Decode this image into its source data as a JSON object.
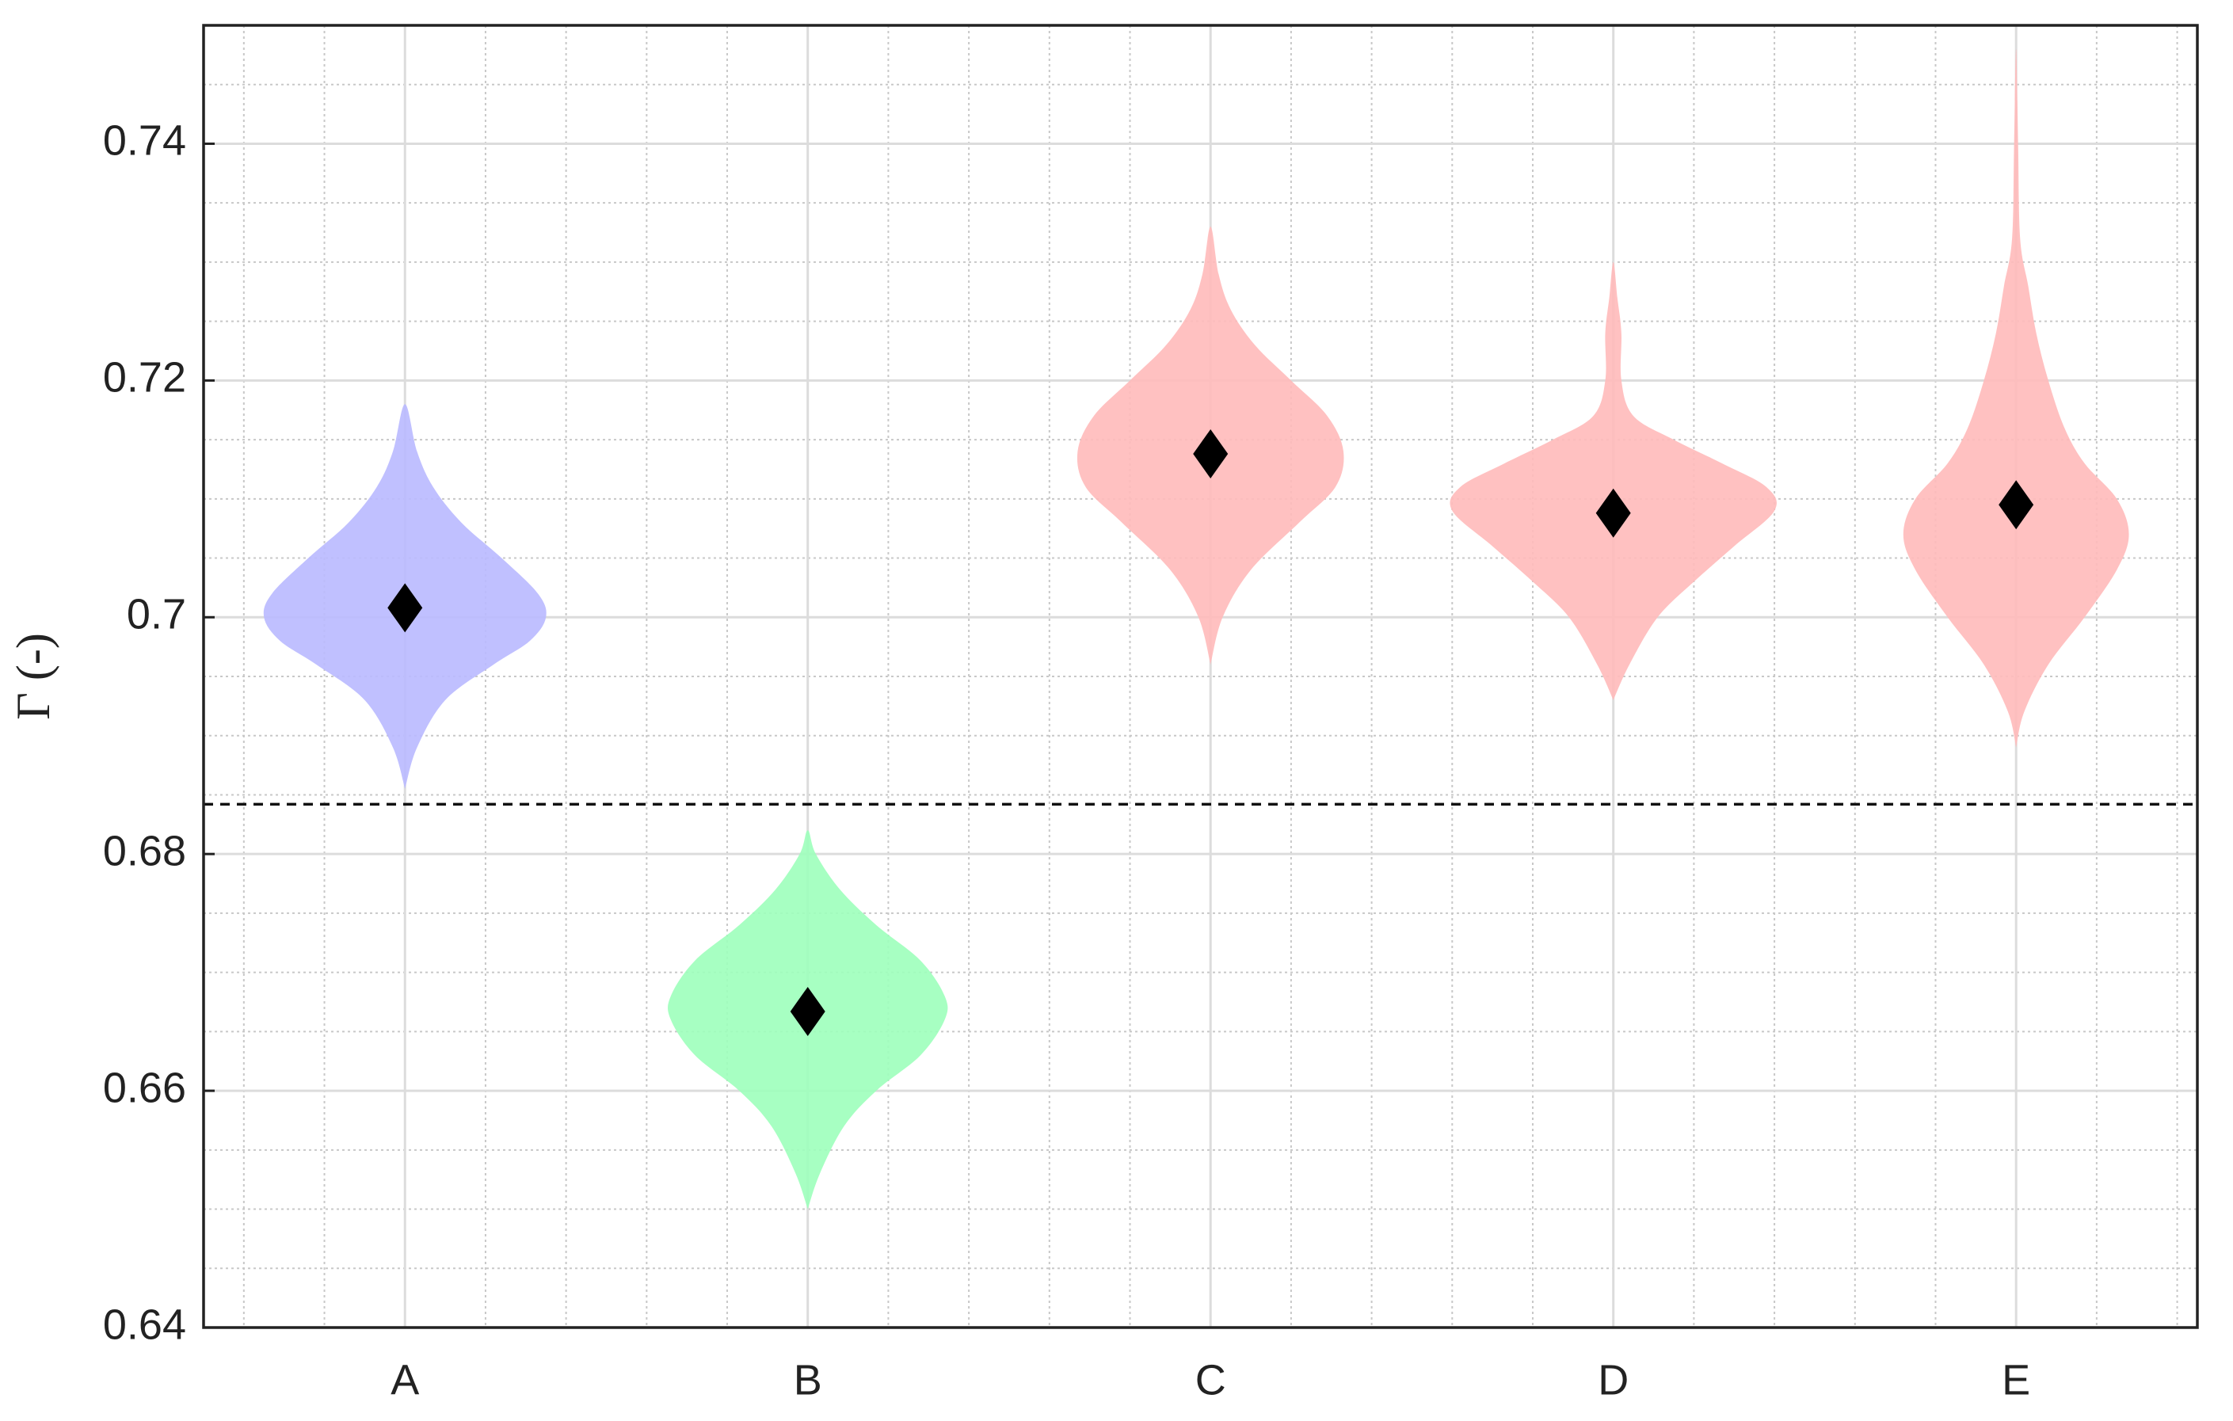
{
  "chart_data": {
    "type": "violin",
    "ylabel": "Γ (-)",
    "categories": [
      "A",
      "B",
      "C",
      "D",
      "E"
    ],
    "values": [
      0.7008,
      0.6667,
      0.7138,
      0.7088,
      0.7095
    ],
    "colors": [
      "#b9b9ff",
      "#9dffbb",
      "#ffbaba",
      "#ffbaba",
      "#ffbaba"
    ],
    "violins": [
      {
        "y": [
          0.6855,
          0.689,
          0.693,
          0.696,
          0.698,
          0.7,
          0.702,
          0.705,
          0.708,
          0.711,
          0.714,
          0.718
        ],
        "width": [
          0,
          0.03,
          0.1,
          0.22,
          0.31,
          0.35,
          0.33,
          0.24,
          0.14,
          0.07,
          0.03,
          0
        ]
      },
      {
        "y": [
          0.65,
          0.653,
          0.657,
          0.66,
          0.663,
          0.666,
          0.668,
          0.671,
          0.674,
          0.677,
          0.68,
          0.682
        ],
        "width": [
          0,
          0.03,
          0.09,
          0.17,
          0.28,
          0.34,
          0.34,
          0.28,
          0.17,
          0.08,
          0.02,
          0
        ]
      },
      {
        "y": [
          0.696,
          0.7,
          0.704,
          0.708,
          0.711,
          0.714,
          0.717,
          0.72,
          0.723,
          0.726,
          0.729,
          0.733
        ],
        "width": [
          0,
          0.03,
          0.1,
          0.22,
          0.31,
          0.33,
          0.29,
          0.2,
          0.11,
          0.05,
          0.02,
          0
        ]
      },
      {
        "y": [
          0.693,
          0.696,
          0.7,
          0.703,
          0.706,
          0.709,
          0.711,
          0.713,
          0.715,
          0.717,
          0.72,
          0.724,
          0.727,
          0.73
        ],
        "width": [
          0,
          0.04,
          0.11,
          0.2,
          0.3,
          0.4,
          0.38,
          0.27,
          0.15,
          0.05,
          0.02,
          0.02,
          0.01,
          0
        ]
      },
      {
        "y": [
          0.689,
          0.692,
          0.696,
          0.7,
          0.704,
          0.707,
          0.71,
          0.713,
          0.716,
          0.72,
          0.724,
          0.728,
          0.732,
          0.74,
          0.748
        ],
        "width": [
          0,
          0.02,
          0.08,
          0.17,
          0.25,
          0.28,
          0.25,
          0.17,
          0.12,
          0.08,
          0.05,
          0.03,
          0.01,
          0.005,
          0
        ]
      }
    ],
    "ref_line": 0.6842,
    "ylim": [
      0.64,
      0.75
    ],
    "yticks": [
      0.64,
      0.66,
      0.68,
      0.7,
      0.72,
      0.74
    ],
    "yminorticks": [
      0.645,
      0.65,
      0.655,
      0.665,
      0.67,
      0.675,
      0.685,
      0.69,
      0.695,
      0.705,
      0.71,
      0.715,
      0.725,
      0.73,
      0.735,
      0.745
    ],
    "xlim": [
      0.5,
      5.45
    ],
    "xminorticks": [
      0.6,
      0.8,
      1.2,
      1.4,
      1.6,
      1.8,
      2.2,
      2.4,
      2.6,
      2.8,
      3.2,
      3.4,
      3.6,
      3.8,
      4.2,
      4.4,
      4.6,
      4.8,
      5.2,
      5.4
    ],
    "grid": true
  }
}
